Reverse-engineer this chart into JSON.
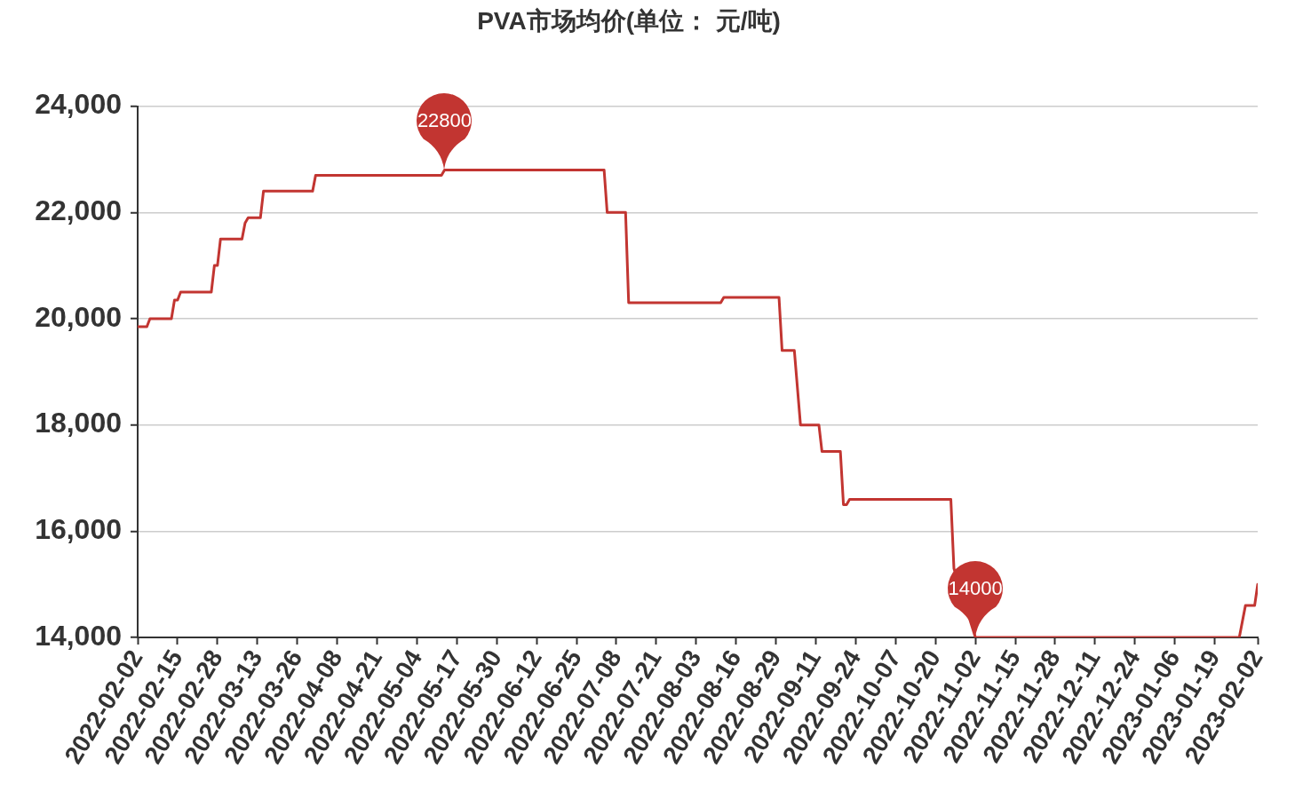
{
  "chart_data": {
    "type": "line",
    "title": "PVA市场均价(单位： 元/吨)",
    "x": [
      "2022-02-02",
      "2022-02-05",
      "2022-02-06",
      "2022-02-13",
      "2022-02-14",
      "2022-02-15",
      "2022-02-16",
      "2022-02-26",
      "2022-02-27",
      "2022-02-28",
      "2022-03-01",
      "2022-03-08",
      "2022-03-09",
      "2022-03-10",
      "2022-03-14",
      "2022-03-15",
      "2022-03-31",
      "2022-04-01",
      "2022-05-12",
      "2022-05-13",
      "2022-07-04",
      "2022-07-05",
      "2022-07-11",
      "2022-07-12",
      "2022-08-11",
      "2022-08-12",
      "2022-08-30",
      "2022-08-31",
      "2022-09-04",
      "2022-09-06",
      "2022-09-12",
      "2022-09-13",
      "2022-09-19",
      "2022-09-20",
      "2022-09-21",
      "2022-09-22",
      "2022-10-25",
      "2022-10-26",
      "2022-11-02",
      "2023-01-27",
      "2023-01-29",
      "2023-02-01",
      "2023-02-02"
    ],
    "series": [
      {
        "color": "#c23531",
        "values": [
          19850,
          19850,
          20000,
          20000,
          20350,
          20350,
          20500,
          20500,
          21000,
          21000,
          21500,
          21500,
          21800,
          21900,
          21900,
          22400,
          22400,
          22700,
          22700,
          22800,
          22800,
          22000,
          22000,
          20300,
          20300,
          20400,
          20400,
          19400,
          19400,
          18000,
          18000,
          17500,
          17500,
          16500,
          16500,
          16600,
          16600,
          15300,
          14000,
          14000,
          14600,
          14600,
          15000
        ]
      }
    ],
    "xlim": [
      "2022-02-02",
      "2023-02-02"
    ],
    "xticks": [
      "2022-02-02",
      "2022-02-15",
      "2022-02-28",
      "2022-03-13",
      "2022-03-26",
      "2022-04-08",
      "2022-04-21",
      "2022-05-04",
      "2022-05-17",
      "2022-05-30",
      "2022-06-12",
      "2022-06-25",
      "2022-07-08",
      "2022-07-21",
      "2022-08-03",
      "2022-08-16",
      "2022-08-29",
      "2022-09-11",
      "2022-09-24",
      "2022-10-07",
      "2022-10-20",
      "2022-11-02",
      "2022-11-15",
      "2022-11-28",
      "2022-12-11",
      "2022-12-24",
      "2023-01-06",
      "2023-01-19",
      "2023-02-02"
    ],
    "ylim": [
      14000,
      24000
    ],
    "yticks": [
      {
        "value": 14000,
        "label": "14,000"
      },
      {
        "value": 16000,
        "label": "16,000"
      },
      {
        "value": 18000,
        "label": "18,000"
      },
      {
        "value": 20000,
        "label": "20,000"
      },
      {
        "value": 22000,
        "label": "22,000"
      },
      {
        "value": 24000,
        "label": "24,000"
      }
    ],
    "grid": "y",
    "marker": "none",
    "line_style": "solid",
    "annotations": [
      {
        "text": "22800",
        "x": "2022-05-13",
        "y": 22800
      },
      {
        "text": "14000",
        "x": "2022-11-02",
        "y": 14000
      }
    ]
  }
}
